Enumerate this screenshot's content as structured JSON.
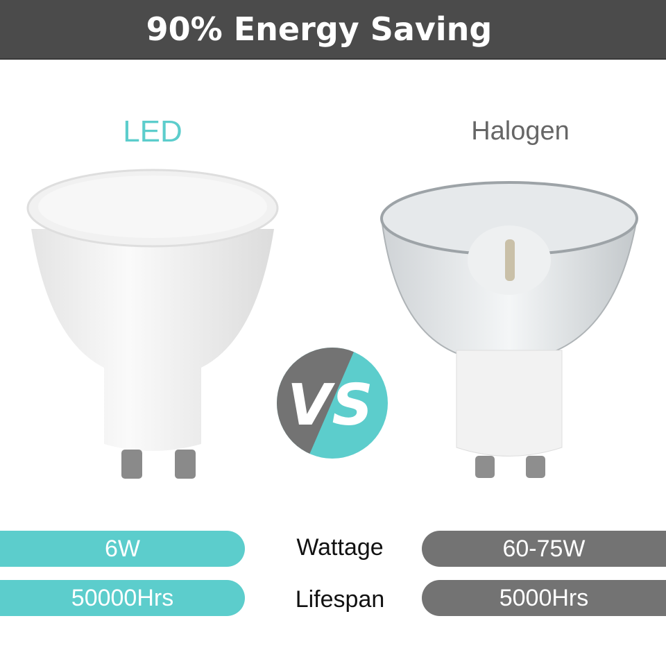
{
  "header": {
    "title": "90% Energy Saving"
  },
  "products": {
    "led": "LED",
    "halogen": "Halogen"
  },
  "vs": {
    "left": "V",
    "right": "S"
  },
  "colors": {
    "led": "#5ccdcc",
    "halogen": "#737373",
    "header": "#4b4b4b"
  },
  "comparison": [
    {
      "metric": "Wattage",
      "led": "6W",
      "halogen": "60-75W"
    },
    {
      "metric": "Lifespan",
      "led": "50000Hrs",
      "halogen": "5000Hrs"
    }
  ]
}
